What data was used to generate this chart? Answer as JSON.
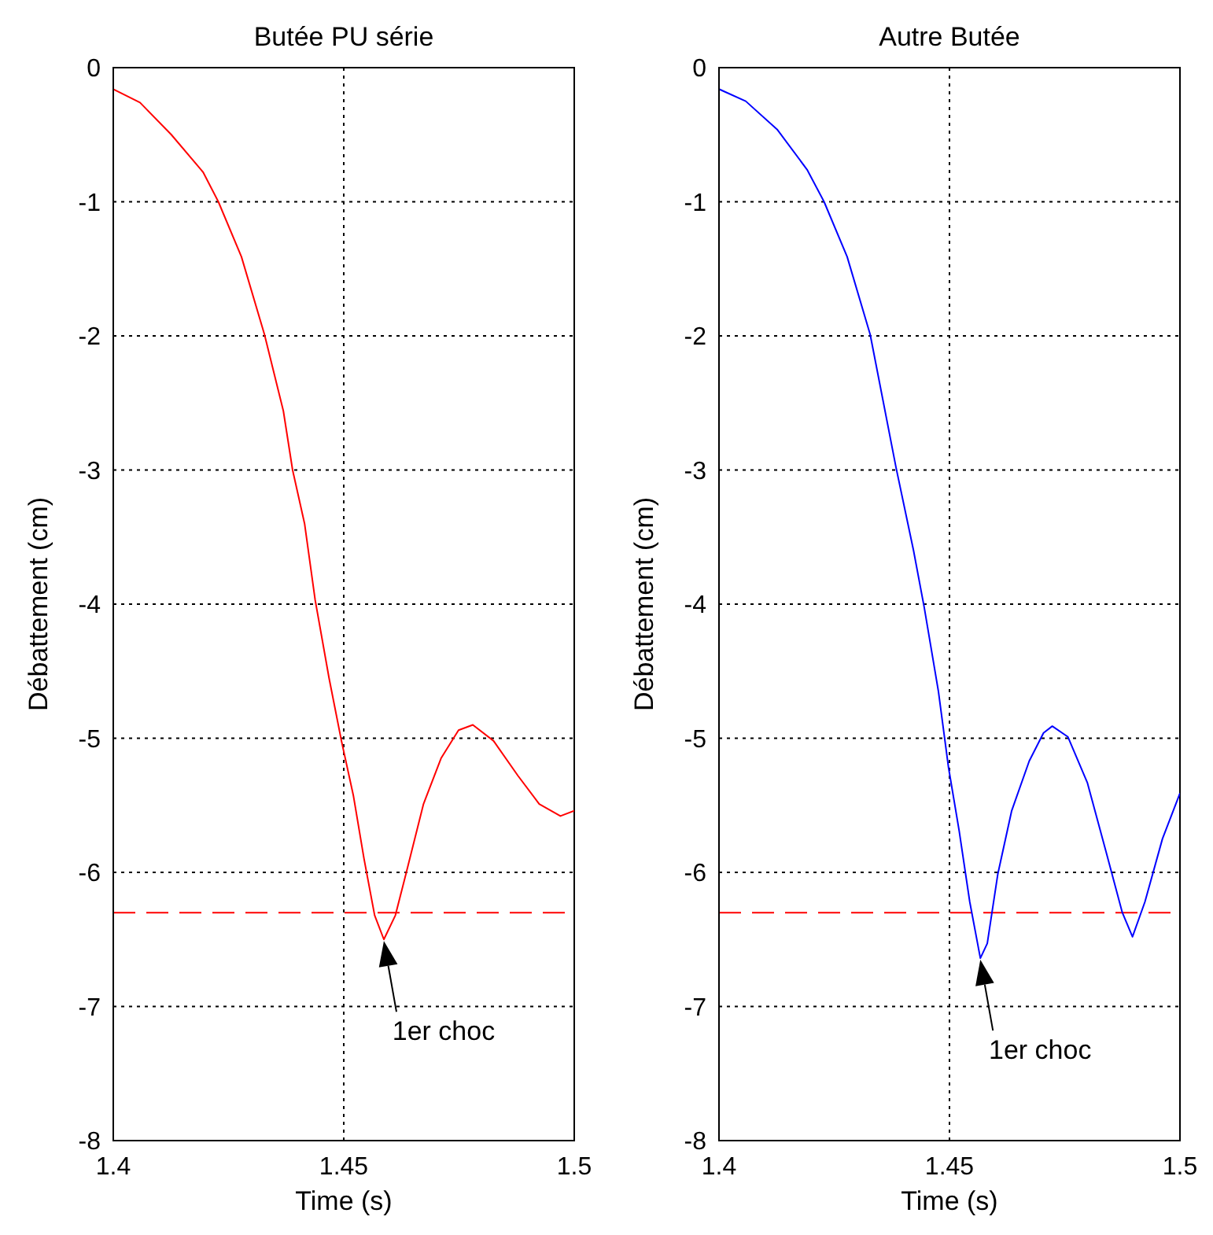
{
  "chart_data": [
    {
      "type": "line",
      "title": "Butée PU série",
      "xlabel": "Time (s)",
      "ylabel": "Débattement (cm)",
      "xlim": [
        1.4,
        1.5
      ],
      "xticks": [
        1.4,
        1.45,
        1.5
      ],
      "ylim": [
        -8,
        0
      ],
      "yticks": [
        -8,
        -7,
        -6,
        -5,
        -4,
        -3,
        -2,
        -1,
        0
      ],
      "grid": true,
      "marker": "none",
      "line_style": "solid",
      "series": [
        {
          "color": "#ff0000",
          "x": [
            1.4,
            1.4058,
            1.4126,
            1.4195,
            1.4228,
            1.4278,
            1.4328,
            1.4369,
            1.4389,
            1.4415,
            1.4438,
            1.4468,
            1.4495,
            1.4521,
            1.4544,
            1.4567,
            1.4587,
            1.4612,
            1.4635,
            1.4673,
            1.4711,
            1.4749,
            1.478,
            1.4825,
            1.4878,
            1.4924,
            1.497,
            1.5
          ],
          "values": [
            -0.16,
            -0.26,
            -0.5,
            -0.78,
            -1.0,
            -1.41,
            -1.99,
            -2.56,
            -3.0,
            -3.4,
            -3.97,
            -4.55,
            -5.02,
            -5.43,
            -5.9,
            -6.32,
            -6.5,
            -6.32,
            -6.01,
            -5.49,
            -5.15,
            -4.94,
            -4.9,
            -5.02,
            -5.28,
            -5.49,
            -5.58,
            -5.54
          ]
        }
      ],
      "ref_lines": [
        {
          "axis": "y",
          "value": -6.3,
          "color": "#ff0000",
          "line_style": "dashed"
        }
      ],
      "annotations": [
        {
          "text": "1er choc",
          "x": 1.4587,
          "y": -6.5
        }
      ]
    },
    {
      "type": "line",
      "title": "Autre Butée",
      "xlabel": "Time (s)",
      "ylabel": "Débattement (cm)",
      "xlim": [
        1.4,
        1.5
      ],
      "xticks": [
        1.4,
        1.45,
        1.5
      ],
      "ylim": [
        -8,
        0
      ],
      "yticks": [
        -8,
        -7,
        -6,
        -5,
        -4,
        -3,
        -2,
        -1,
        0
      ],
      "grid": true,
      "marker": "none",
      "line_style": "solid",
      "series": [
        {
          "color": "#0000ff",
          "x": [
            1.4,
            1.4058,
            1.4126,
            1.4191,
            1.4228,
            1.4278,
            1.4328,
            1.4384,
            1.4422,
            1.4445,
            1.4476,
            1.4498,
            1.4521,
            1.4544,
            1.4567,
            1.4582,
            1.4605,
            1.4635,
            1.4673,
            1.4704,
            1.4723,
            1.4757,
            1.4799,
            1.484,
            1.4875,
            1.4897,
            1.4924,
            1.4962,
            1.5
          ],
          "values": [
            -0.16,
            -0.25,
            -0.46,
            -0.76,
            -1.0,
            -1.41,
            -1.99,
            -2.98,
            -3.6,
            -4.02,
            -4.65,
            -5.22,
            -5.69,
            -6.22,
            -6.64,
            -6.53,
            -6.01,
            -5.54,
            -5.17,
            -4.96,
            -4.91,
            -4.99,
            -5.33,
            -5.85,
            -6.3,
            -6.48,
            -6.22,
            -5.75,
            -5.41
          ]
        }
      ],
      "ref_lines": [
        {
          "axis": "y",
          "value": -6.3,
          "color": "#ff0000",
          "line_style": "dashed"
        }
      ],
      "annotations": [
        {
          "text": "1er choc",
          "x": 1.4567,
          "y": -6.64
        }
      ]
    }
  ]
}
